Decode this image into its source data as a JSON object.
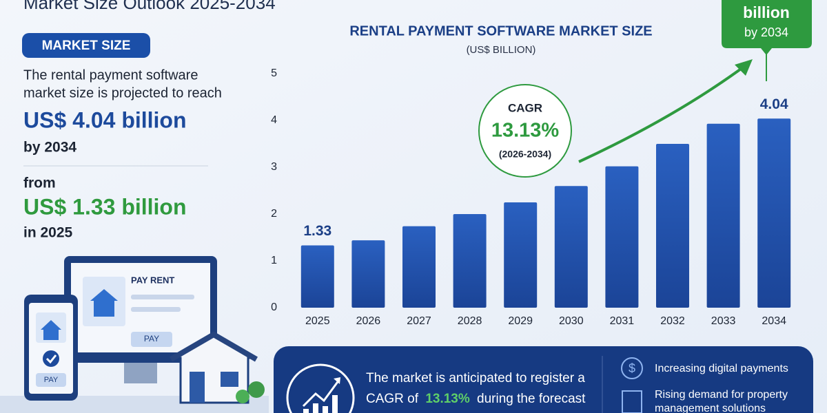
{
  "header": {
    "title": "Market Size Outlook 2025-2034"
  },
  "left_panel": {
    "badge": "MARKET SIZE",
    "intro_line1": "The rental payment software",
    "intro_line2": "market size is projected to reach",
    "target_value": "US$ 4.04 billion",
    "target_year": "by 2034",
    "from_label": "from",
    "base_value": "US$ 1.33 billion",
    "base_year": "in 2025"
  },
  "illustration": {
    "screen_title": "PAY RENT",
    "screen_button": "PAY",
    "phone_button": "PAY"
  },
  "chart_data": {
    "type": "bar",
    "title": "RENTAL PAYMENT SOFTWARE MARKET SIZE",
    "subtitle": "(US$ BILLION)",
    "categories": [
      "2025",
      "2026",
      "2027",
      "2028",
      "2029",
      "2030",
      "2031",
      "2032",
      "2033",
      "2034"
    ],
    "values": [
      1.33,
      1.44,
      1.74,
      2.0,
      2.25,
      2.6,
      3.02,
      3.5,
      3.93,
      4.04
    ],
    "value_labels": [
      "1.33",
      null,
      null,
      null,
      null,
      null,
      null,
      null,
      null,
      "4.04"
    ],
    "color": "#2354ad",
    "ylim": [
      0,
      5
    ],
    "yticks": [
      0,
      1,
      2,
      3,
      4,
      5
    ],
    "grid": false
  },
  "cagr_badge": {
    "label": "CAGR",
    "value": "13.13%",
    "period": "(2026-2034)"
  },
  "callout": {
    "line1": "billion",
    "line2": "by 2034"
  },
  "bottom_panel": {
    "line1": "The market is anticipated to register a",
    "line2_prefix": "CAGR of",
    "line2_value": "13.13%",
    "line2_suffix": "during the forecast",
    "driver1": "Increasing digital payments",
    "driver2_line1": "Rising demand for property",
    "driver2_line2": "management solutions"
  }
}
